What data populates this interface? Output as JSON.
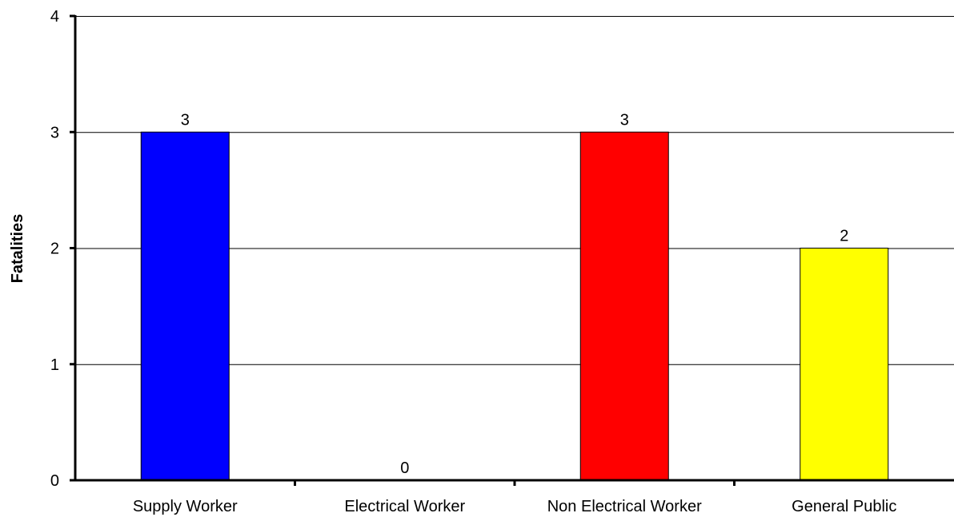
{
  "chart_data": {
    "type": "bar",
    "title": "",
    "xlabel": "",
    "ylabel": "Fatalities",
    "categories": [
      "Supply Worker",
      "Electrical Worker",
      "Non Electrical Worker",
      "General Public"
    ],
    "values": [
      3,
      0,
      3,
      2
    ],
    "data_labels": [
      "3",
      "0",
      "3",
      "2"
    ],
    "colors": [
      "#0000ff",
      "#ff00ff",
      "#ff0000",
      "#ffff00"
    ],
    "ylim": [
      0,
      4
    ],
    "yticks": [
      0,
      1,
      2,
      3,
      4
    ],
    "grid": true,
    "legend": "none"
  }
}
